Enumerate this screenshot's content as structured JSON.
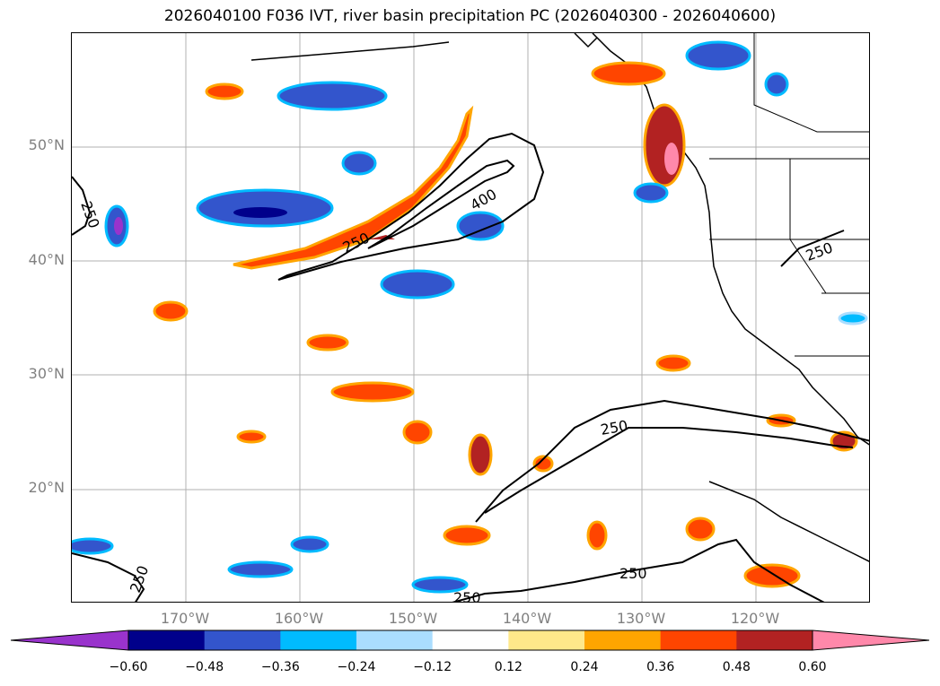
{
  "title": "2026040100 F036 IVT, river basin precipitation PC (2026040300 - 2026040600)",
  "axes": {
    "lat_labels": [
      "50°N",
      "40°N",
      "30°N",
      "20°N"
    ],
    "lon_labels": [
      "170°W",
      "160°W",
      "150°W",
      "140°W",
      "130°W",
      "120°W"
    ]
  },
  "contour_labels": [
    "250",
    "250",
    "400",
    "250",
    "250",
    "250",
    "250",
    "250"
  ],
  "colorbar": {
    "ticks": [
      "−0.60",
      "−0.48",
      "−0.36",
      "−0.24",
      "−0.12",
      "0.12",
      "0.24",
      "0.36",
      "0.48",
      "0.60"
    ],
    "colors": [
      "#9933cc",
      "#00008b",
      "#3355cc",
      "#00bbff",
      "#aaddff",
      "#ffffff",
      "#ffe88a",
      "#ffa500",
      "#ff4500",
      "#b22222",
      "#ff88aa",
      "#ff88aa"
    ]
  },
  "chart_data": {
    "type": "contour-map",
    "title": "2026040100 F036 IVT, river basin precipitation PC (2026040300 - 2026040600)",
    "projection": "PlateCarree",
    "lon_range": [
      -180,
      -110
    ],
    "lat_range": [
      10,
      60
    ],
    "ivt_contour_levels": [
      250,
      400
    ],
    "pc_levels": [
      -0.6,
      -0.48,
      -0.36,
      -0.24,
      -0.12,
      0.12,
      0.24,
      0.36,
      0.48,
      0.6
    ],
    "gridlines": true
  }
}
